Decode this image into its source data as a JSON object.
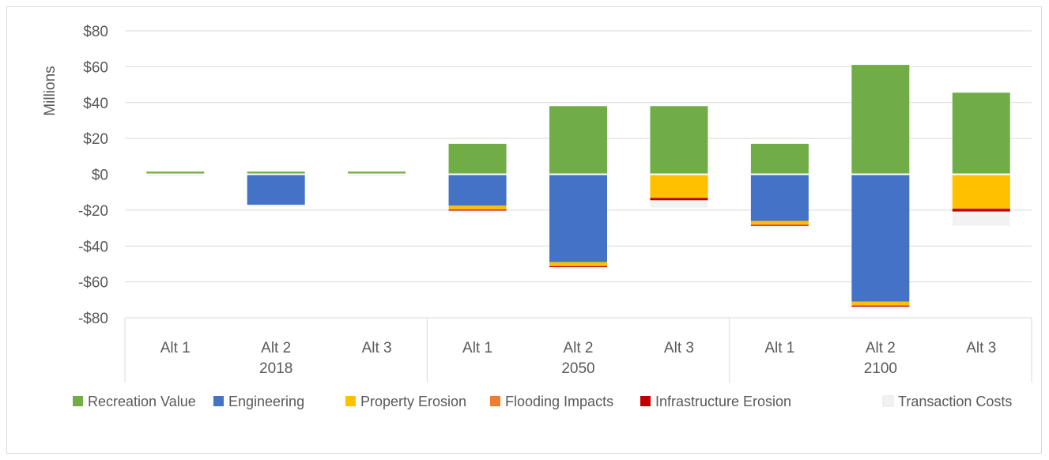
{
  "chart_data": {
    "type": "bar",
    "stacked": true,
    "ylabel": "Millions",
    "ylim": [
      -80,
      80
    ],
    "y_ticks": [
      80,
      60,
      40,
      20,
      0,
      -20,
      -40,
      -60,
      -80
    ],
    "y_tick_labels": [
      "$80",
      "$60",
      "$40",
      "$20",
      "$0",
      "-$20",
      "-$40",
      "-$60",
      "-$80"
    ],
    "grid": true,
    "legend_position": "bottom",
    "groups": [
      {
        "label": "2018",
        "categories": [
          "Alt 1",
          "Alt 2",
          "Alt 3"
        ]
      },
      {
        "label": "2050",
        "categories": [
          "Alt 1",
          "Alt 2",
          "Alt 3"
        ]
      },
      {
        "label": "2100",
        "categories": [
          "Alt 1",
          "Alt 2",
          "Alt 3"
        ]
      }
    ],
    "series": [
      {
        "name": "Recreation Value",
        "color": "#70ad47",
        "values": [
          1.5,
          1.5,
          1.5,
          17,
          38,
          38,
          17,
          61,
          45.5
        ]
      },
      {
        "name": "Engineering",
        "color": "#4472c4",
        "values": [
          0,
          -17,
          0,
          -17.5,
          -49,
          0,
          -26,
          -71,
          0
        ]
      },
      {
        "name": "Property Erosion",
        "color": "#ffc000",
        "values": [
          0,
          0,
          0,
          -2,
          -2,
          -13,
          -2,
          -2,
          -19
        ]
      },
      {
        "name": "Flooding Impacts",
        "color": "#ed7d31",
        "values": [
          0,
          0,
          0,
          -0.3,
          -0.3,
          -0.3,
          -0.3,
          -0.3,
          -0.3
        ]
      },
      {
        "name": "Infrastructure Erosion",
        "color": "#c00000",
        "values": [
          0,
          0,
          0,
          -0.5,
          -0.5,
          -1.2,
          -0.5,
          -0.5,
          -1.5
        ]
      },
      {
        "name": "Transaction Costs",
        "color": "#f2f2f2",
        "values": [
          -1,
          -1,
          -1,
          -1,
          -1,
          -4,
          -1,
          -1,
          -8
        ]
      }
    ]
  }
}
